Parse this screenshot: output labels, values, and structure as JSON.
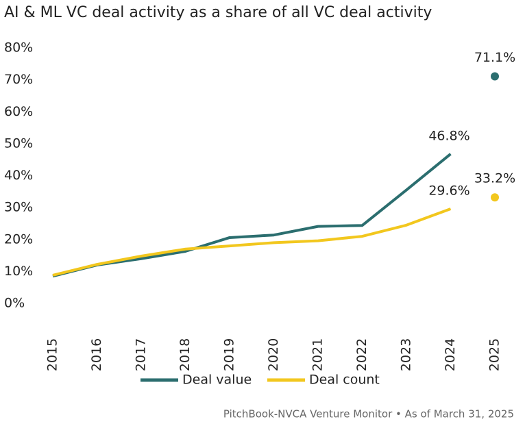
{
  "chart_data": {
    "type": "line",
    "title": "AI & ML VC deal activity as a share of all VC deal activity",
    "categories": [
      "2015",
      "2016",
      "2017",
      "2018",
      "2019",
      "2020",
      "2021",
      "2022",
      "2023",
      "2024",
      "2025"
    ],
    "series": [
      {
        "name": "Deal value",
        "color": "#2b6e6f",
        "values": [
          8.5,
          12,
          14,
          16.3,
          20.6,
          21.4,
          24.1,
          24.4,
          35.5,
          46.8,
          71.1
        ],
        "value_labels": [
          null,
          null,
          null,
          null,
          null,
          null,
          null,
          null,
          null,
          "46.8%",
          "71.1%"
        ]
      },
      {
        "name": "Deal count",
        "color": "#f2c71e",
        "values": [
          8.8,
          12.2,
          14.8,
          17,
          18,
          19,
          19.6,
          21,
          24.5,
          29.6,
          33.2
        ],
        "value_labels": [
          null,
          null,
          null,
          null,
          null,
          null,
          null,
          null,
          null,
          "29.6%",
          "33.2%"
        ]
      }
    ],
    "ylim": [
      0,
      80
    ],
    "yticks": [
      {
        "value": 0,
        "label": "0%"
      },
      {
        "value": 10,
        "label": "10%"
      },
      {
        "value": 20,
        "label": "20%"
      },
      {
        "value": 30,
        "label": "30%"
      },
      {
        "value": 40,
        "label": "40%"
      },
      {
        "value": 50,
        "label": "50%"
      },
      {
        "value": 60,
        "label": "60%"
      },
      {
        "value": 70,
        "label": "70%"
      },
      {
        "value": 80,
        "label": "80%"
      }
    ],
    "grid": false,
    "source": "PitchBook-NVCA Venture Monitor  •  As of March 31, 2025"
  }
}
